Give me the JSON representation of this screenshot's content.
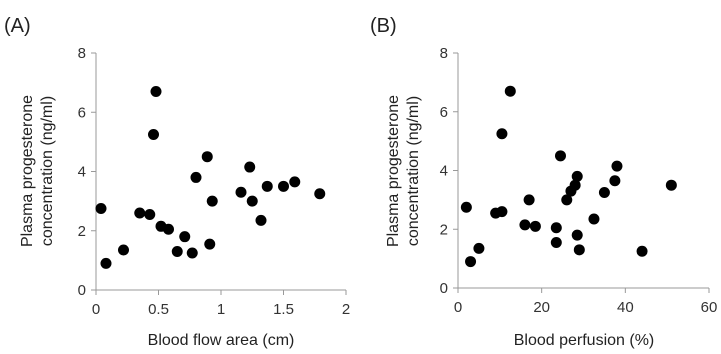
{
  "chart_data": [
    {
      "type": "scatter",
      "panel_label": "(A)",
      "xlabel": "Blood flow area (cm)",
      "ylabel_lines": [
        "Plasma progesterone",
        "concentration (ng/ml)"
      ],
      "xlim": [
        0,
        2
      ],
      "ylim": [
        0,
        8
      ],
      "xticks": [
        0,
        0.5,
        1,
        1.5,
        2
      ],
      "xtick_labels": [
        "0",
        "0.5",
        "1",
        "1.5",
        "2"
      ],
      "yticks": [
        0,
        2,
        4,
        6,
        8
      ],
      "ytick_labels": [
        "0",
        "2",
        "4",
        "6",
        "8"
      ],
      "grid": false,
      "marker_color": "#000000",
      "points": [
        [
          0.04,
          2.75
        ],
        [
          0.08,
          0.9
        ],
        [
          0.22,
          1.35
        ],
        [
          0.35,
          2.6
        ],
        [
          0.43,
          2.55
        ],
        [
          0.46,
          5.25
        ],
        [
          0.48,
          6.7
        ],
        [
          0.52,
          2.15
        ],
        [
          0.58,
          2.05
        ],
        [
          0.65,
          1.3
        ],
        [
          0.71,
          1.8
        ],
        [
          0.77,
          1.25
        ],
        [
          0.8,
          3.8
        ],
        [
          0.89,
          4.5
        ],
        [
          0.91,
          1.55
        ],
        [
          0.93,
          3.0
        ],
        [
          1.16,
          3.3
        ],
        [
          1.23,
          4.15
        ],
        [
          1.25,
          3.0
        ],
        [
          1.32,
          2.35
        ],
        [
          1.37,
          3.5
        ],
        [
          1.5,
          3.5
        ],
        [
          1.59,
          3.65
        ],
        [
          1.79,
          3.25
        ]
      ]
    },
    {
      "type": "scatter",
      "panel_label": "(B)",
      "xlabel": "Blood perfusion (%)",
      "ylabel_lines": [
        "Plasma progesterone",
        "concentration (ng/ml)"
      ],
      "xlim": [
        0,
        60
      ],
      "ylim": [
        0,
        8
      ],
      "xticks": [
        0,
        20,
        40,
        60
      ],
      "xtick_labels": [
        "0",
        "20",
        "40",
        "60"
      ],
      "yticks": [
        0,
        2,
        4,
        6,
        8
      ],
      "ytick_labels": [
        "0",
        "2",
        "4",
        "6",
        "8"
      ],
      "grid": false,
      "marker_color": "#000000",
      "points": [
        [
          2.0,
          2.75
        ],
        [
          3.0,
          0.9
        ],
        [
          5.0,
          1.35
        ],
        [
          9.0,
          2.55
        ],
        [
          10.5,
          2.6
        ],
        [
          10.5,
          5.25
        ],
        [
          12.5,
          6.7
        ],
        [
          16.0,
          2.15
        ],
        [
          17.0,
          3.0
        ],
        [
          18.5,
          2.1
        ],
        [
          23.5,
          2.05
        ],
        [
          23.5,
          1.55
        ],
        [
          24.5,
          4.5
        ],
        [
          26.0,
          3.0
        ],
        [
          27.0,
          3.3
        ],
        [
          28.0,
          3.5
        ],
        [
          28.5,
          1.8
        ],
        [
          28.5,
          3.8
        ],
        [
          29.0,
          1.3
        ],
        [
          32.5,
          2.35
        ],
        [
          35.0,
          3.25
        ],
        [
          37.5,
          3.65
        ],
        [
          38.0,
          4.15
        ],
        [
          44.0,
          1.25
        ],
        [
          51.0,
          3.5
        ]
      ]
    }
  ]
}
